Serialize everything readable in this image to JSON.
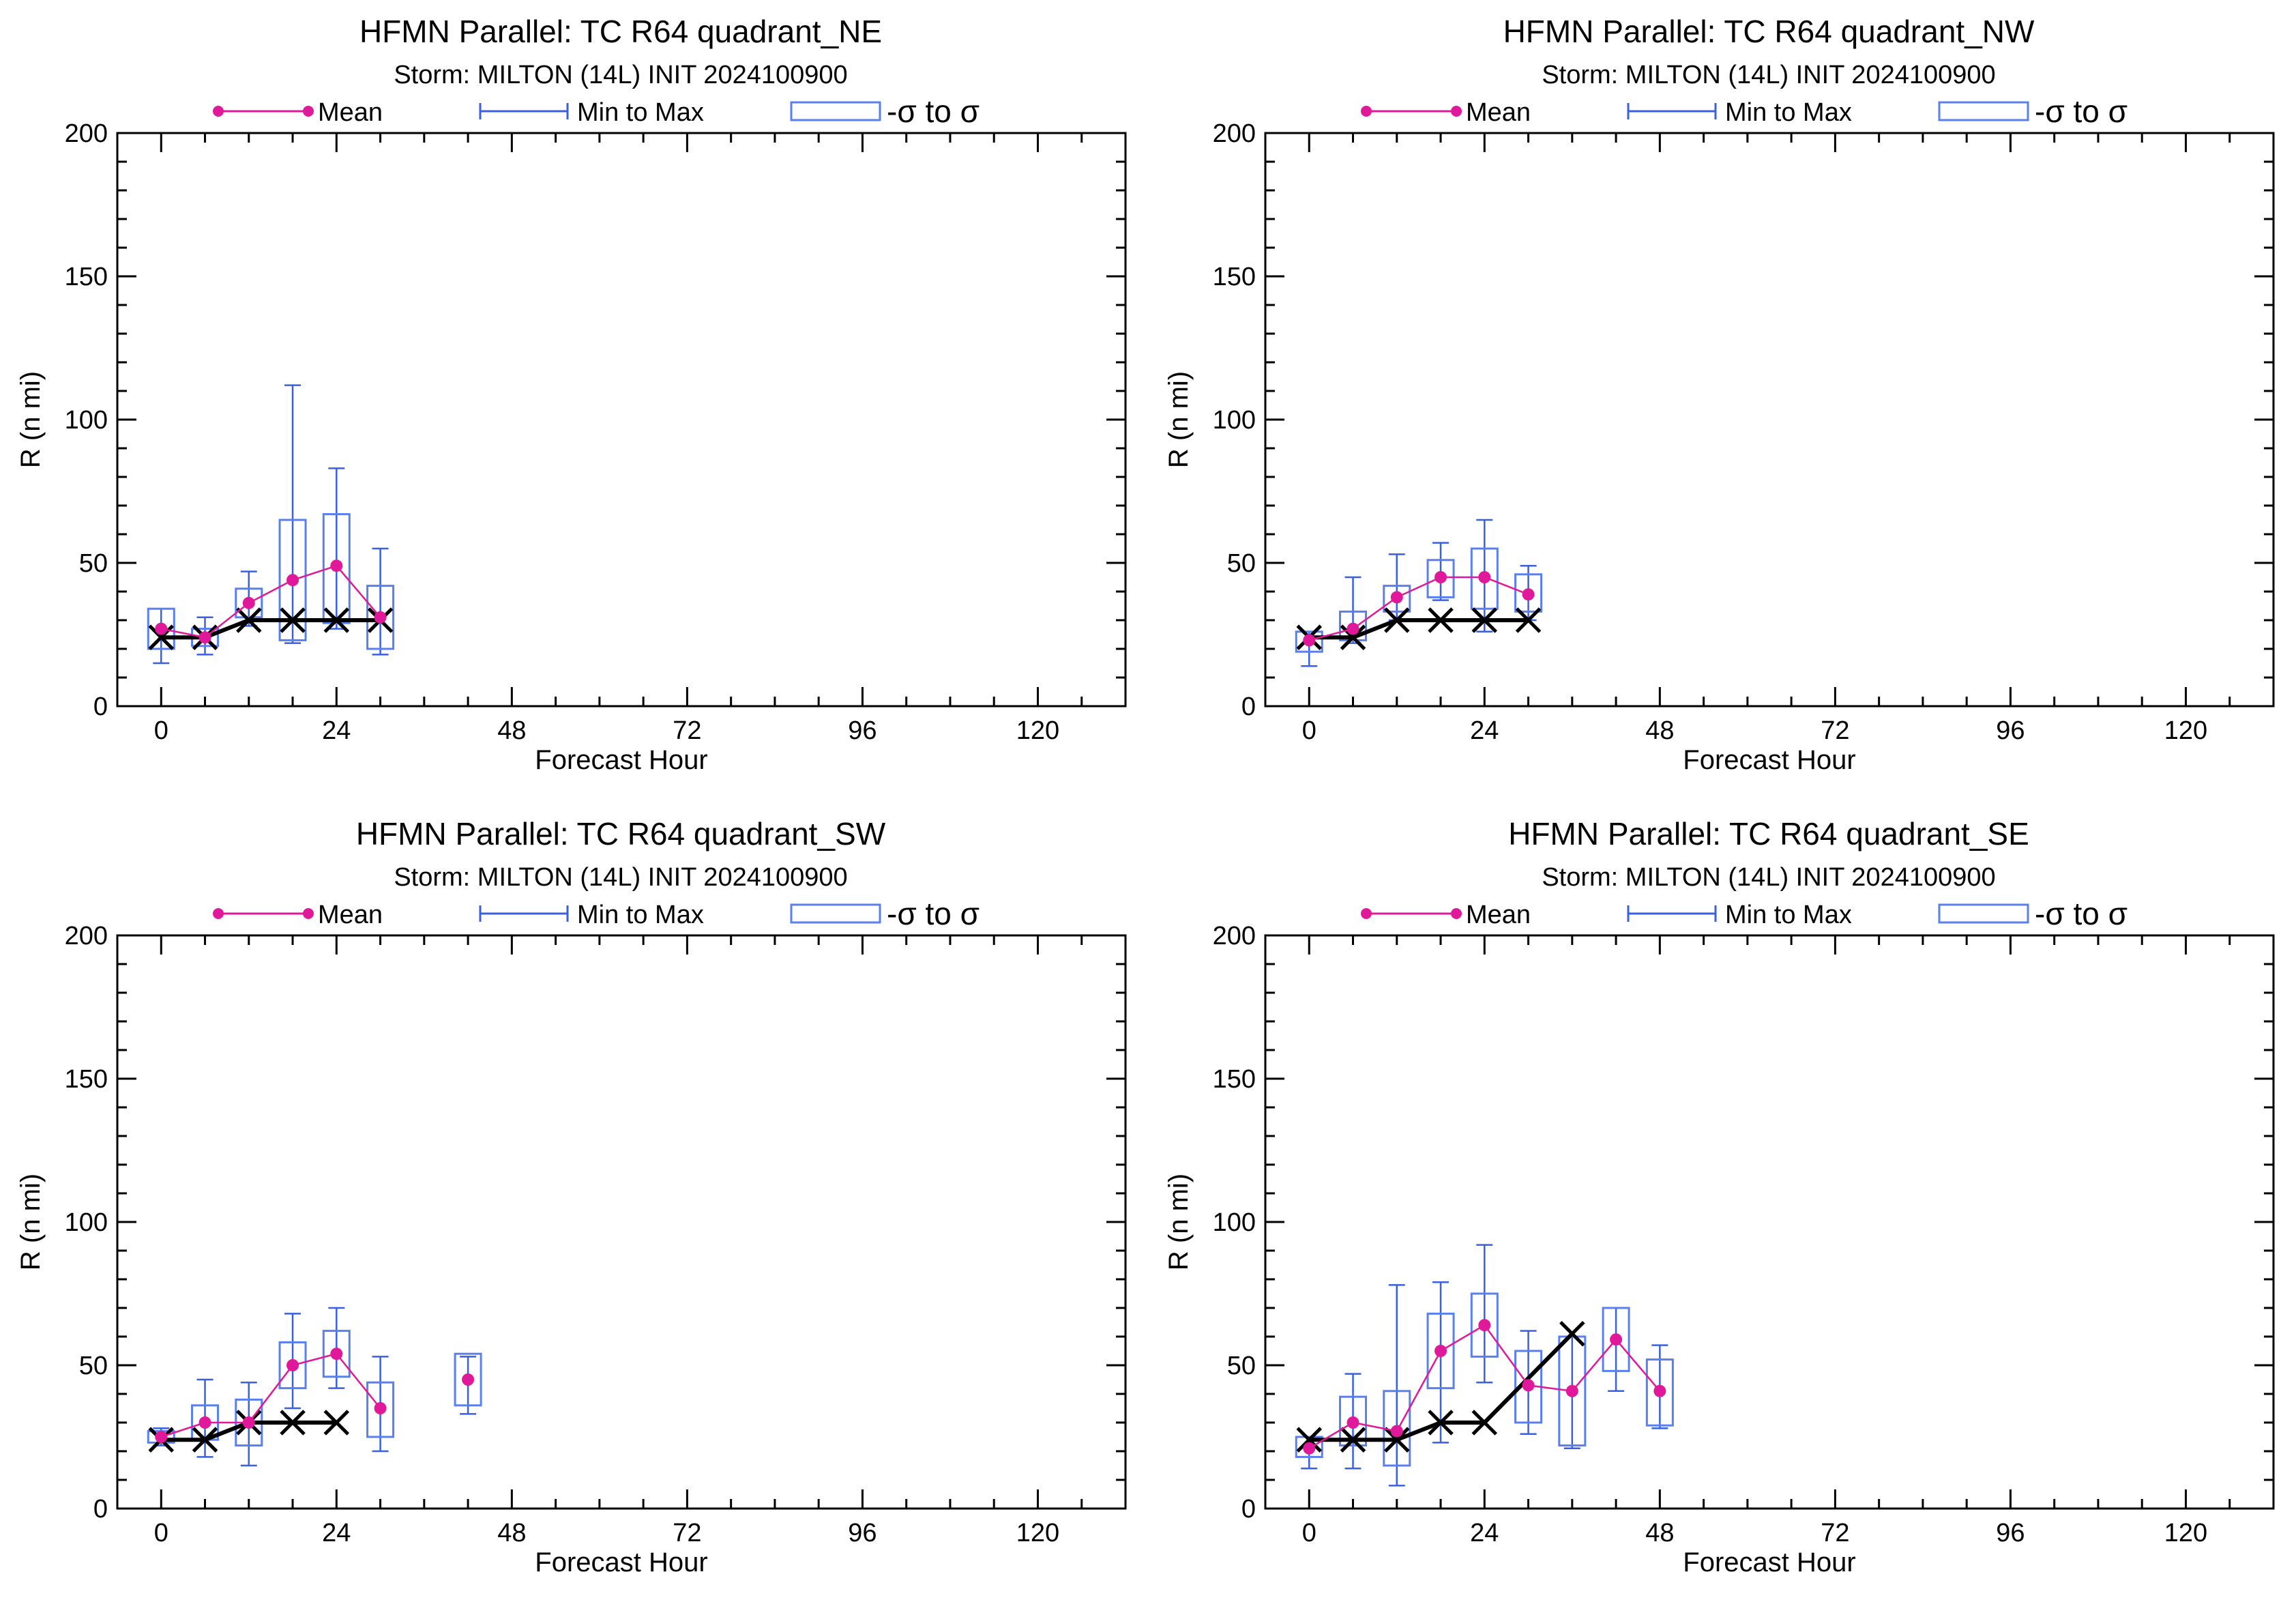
{
  "colors": {
    "mean": "#e0189a",
    "minmax": "#3a5fe0",
    "sigma_box": "#5a7ff0",
    "observed": "#000000",
    "axis": "#000000"
  },
  "legend": {
    "mean_label": "Mean",
    "minmax_label": "Min to Max",
    "sigma_label": "-σ to σ"
  },
  "chart_data": [
    {
      "type": "box",
      "title": "HFMN Parallel: TC  R64 quadrant_NE",
      "subtitle": "Storm: MILTON (14L) INIT 2024100900",
      "xlabel": "Forecast Hour",
      "ylabel": "R (n mi)",
      "xlim": [
        -6,
        132
      ],
      "ylim": [
        0,
        200
      ],
      "xticks": [
        0,
        24,
        48,
        72,
        96,
        120
      ],
      "yticks": [
        0,
        50,
        100,
        150,
        200
      ],
      "series": [
        {
          "name": "Mean",
          "x": [
            0,
            6,
            12,
            18,
            24,
            30
          ],
          "y": [
            27,
            24,
            36,
            44,
            49,
            31
          ]
        },
        {
          "name": "Min to Max",
          "x": [
            0,
            6,
            12,
            18,
            24,
            30
          ],
          "low": [
            15,
            18,
            28,
            22,
            27,
            18
          ],
          "high": [
            34,
            31,
            47,
            112,
            83,
            55
          ]
        },
        {
          "name": "-σ to σ",
          "x": [
            0,
            6,
            12,
            18,
            24,
            30
          ],
          "low": [
            20,
            21,
            31,
            23,
            29,
            20
          ],
          "high": [
            34,
            27,
            41,
            65,
            67,
            42
          ]
        },
        {
          "x": [
            0,
            6,
            12,
            18,
            24,
            30
          ],
          "y": [
            24,
            24,
            30,
            30,
            30,
            30
          ]
        }
      ]
    },
    {
      "type": "box",
      "title": "HFMN Parallel: TC  R64 quadrant_NW",
      "subtitle": "Storm: MILTON (14L) INIT 2024100900",
      "xlabel": "Forecast Hour",
      "ylabel": "R (n mi)",
      "xlim": [
        -6,
        132
      ],
      "ylim": [
        0,
        200
      ],
      "xticks": [
        0,
        24,
        48,
        72,
        96,
        120
      ],
      "yticks": [
        0,
        50,
        100,
        150,
        200
      ],
      "series": [
        {
          "name": "Mean",
          "x": [
            0,
            6,
            12,
            18,
            24,
            30
          ],
          "y": [
            23,
            27,
            38,
            45,
            45,
            39
          ]
        },
        {
          "name": "Min to Max",
          "x": [
            0,
            6,
            12,
            18,
            24,
            30
          ],
          "low": [
            14,
            22,
            30,
            37,
            26,
            30
          ],
          "high": [
            26,
            45,
            53,
            57,
            65,
            49
          ]
        },
        {
          "name": "-σ to σ",
          "x": [
            0,
            6,
            12,
            18,
            24,
            30
          ],
          "low": [
            19,
            23,
            33,
            38,
            34,
            33
          ],
          "high": [
            26,
            33,
            42,
            51,
            55,
            46
          ]
        },
        {
          "x": [
            0,
            6,
            12,
            18,
            24,
            30
          ],
          "y": [
            24,
            24,
            30,
            30,
            30,
            30
          ]
        }
      ]
    },
    {
      "type": "box",
      "title": "HFMN Parallel: TC  R64 quadrant_SW",
      "subtitle": "Storm: MILTON (14L) INIT 2024100900",
      "xlabel": "Forecast Hour",
      "ylabel": "R (n mi)",
      "xlim": [
        -6,
        132
      ],
      "ylim": [
        0,
        200
      ],
      "xticks": [
        0,
        24,
        48,
        72,
        96,
        120
      ],
      "yticks": [
        0,
        50,
        100,
        150,
        200
      ],
      "series": [
        {
          "name": "Mean",
          "x": [
            0,
            6,
            12,
            18,
            24,
            30,
            42
          ],
          "y": [
            25,
            30,
            30,
            50,
            54,
            35,
            45
          ]
        },
        {
          "name": "Min to Max",
          "x": [
            0,
            6,
            12,
            18,
            24,
            30,
            42
          ],
          "low": [
            22,
            18,
            15,
            35,
            42,
            20,
            33
          ],
          "high": [
            28,
            45,
            44,
            68,
            70,
            53,
            53
          ]
        },
        {
          "name": "-σ to σ",
          "x": [
            0,
            6,
            12,
            18,
            24,
            30,
            42
          ],
          "low": [
            23,
            24,
            22,
            42,
            46,
            25,
            36
          ],
          "high": [
            27,
            36,
            38,
            58,
            62,
            44,
            54
          ]
        },
        {
          "x": [
            0,
            6,
            12,
            18,
            24
          ],
          "y": [
            24,
            24,
            30,
            30,
            30
          ]
        }
      ]
    },
    {
      "type": "box",
      "title": "HFMN Parallel: TC  R64 quadrant_SE",
      "subtitle": "Storm: MILTON (14L) INIT 2024100900",
      "xlabel": "Forecast Hour",
      "ylabel": "R (n mi)",
      "xlim": [
        -6,
        132
      ],
      "ylim": [
        0,
        200
      ],
      "xticks": [
        0,
        24,
        48,
        72,
        96,
        120
      ],
      "yticks": [
        0,
        50,
        100,
        150,
        200
      ],
      "series": [
        {
          "name": "Mean",
          "x": [
            0,
            6,
            12,
            18,
            24,
            30,
            36,
            42,
            48
          ],
          "y": [
            21,
            30,
            27,
            55,
            64,
            43,
            41,
            59,
            41
          ]
        },
        {
          "name": "Min to Max",
          "x": [
            0,
            6,
            12,
            18,
            24,
            30,
            36,
            42,
            48
          ],
          "low": [
            14,
            14,
            8,
            23,
            44,
            26,
            21,
            41,
            28
          ]
        },
        {
          "name": "Min to Max high",
          "x": [
            0,
            6,
            12,
            18,
            24,
            30,
            36,
            42,
            48
          ],
          "high": [
            25,
            47,
            78,
            79,
            92,
            62,
            60,
            70,
            57
          ]
        },
        {
          "name": "-σ to σ",
          "x": [
            0,
            6,
            12,
            18,
            24,
            30,
            36,
            42,
            48
          ],
          "low": [
            18,
            22,
            15,
            42,
            53,
            30,
            22,
            48,
            29
          ],
          "high": [
            25,
            39,
            41,
            68,
            75,
            55,
            60,
            70,
            52
          ]
        },
        {
          "x": [
            0,
            6,
            12,
            18,
            24,
            36
          ],
          "y": [
            24,
            24,
            24,
            30,
            30,
            61
          ]
        }
      ]
    }
  ]
}
